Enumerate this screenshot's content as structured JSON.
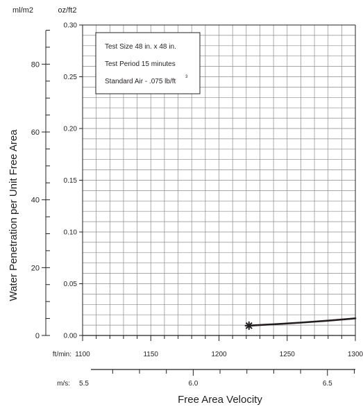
{
  "chart_data": {
    "type": "line",
    "title": "",
    "xlabel": "Free Area Velocity",
    "ylabel": "Water Penetration per Unit Free Area",
    "x_unit_primary": "ft/min:",
    "x_unit_secondary": "m/s:",
    "y_unit_left": "ml/m2",
    "y_unit_right": "oz/ft2",
    "xlim": [
      1100,
      1300
    ],
    "ylim": [
      0,
      0.3
    ],
    "xticks_ftmin": [
      1100,
      1150,
      1200,
      1250,
      1300
    ],
    "xtick_labels_ftmin": [
      "1100",
      "1150",
      "1200",
      "1250",
      "1300"
    ],
    "xticks_ms": [
      5.5,
      6.0,
      6.5
    ],
    "xtick_labels_ms": [
      "5.5",
      "6.0",
      "6.5"
    ],
    "yticks_ozft2": [
      0,
      0.05,
      0.1,
      0.15,
      0.2,
      0.25,
      0.3
    ],
    "ytick_labels_ozft2": [
      "0.00",
      "0.05",
      "0.10",
      "0.15",
      "0.20",
      "0.25",
      "0.30"
    ],
    "yticks_mlm2": [
      0,
      20,
      40,
      60,
      80
    ],
    "ytick_labels_mlm2": [
      "0",
      "20",
      "40",
      "60",
      "80"
    ],
    "grid": true,
    "legend_lines": [
      "Test Size 48 in. x 48 in.",
      "Test Period 15 minutes",
      "Standard Air - .075 lb/ft"
    ],
    "legend_superscript": "3",
    "legend_position": "top-left",
    "series": [
      {
        "x": [
          1222,
          1240,
          1260,
          1280,
          1300
        ],
        "y": [
          0.0095,
          0.0108,
          0.0124,
          0.0143,
          0.0165
        ]
      }
    ],
    "marker": {
      "symbol": "asterisk",
      "x": 1222,
      "y": 0.0095
    }
  }
}
